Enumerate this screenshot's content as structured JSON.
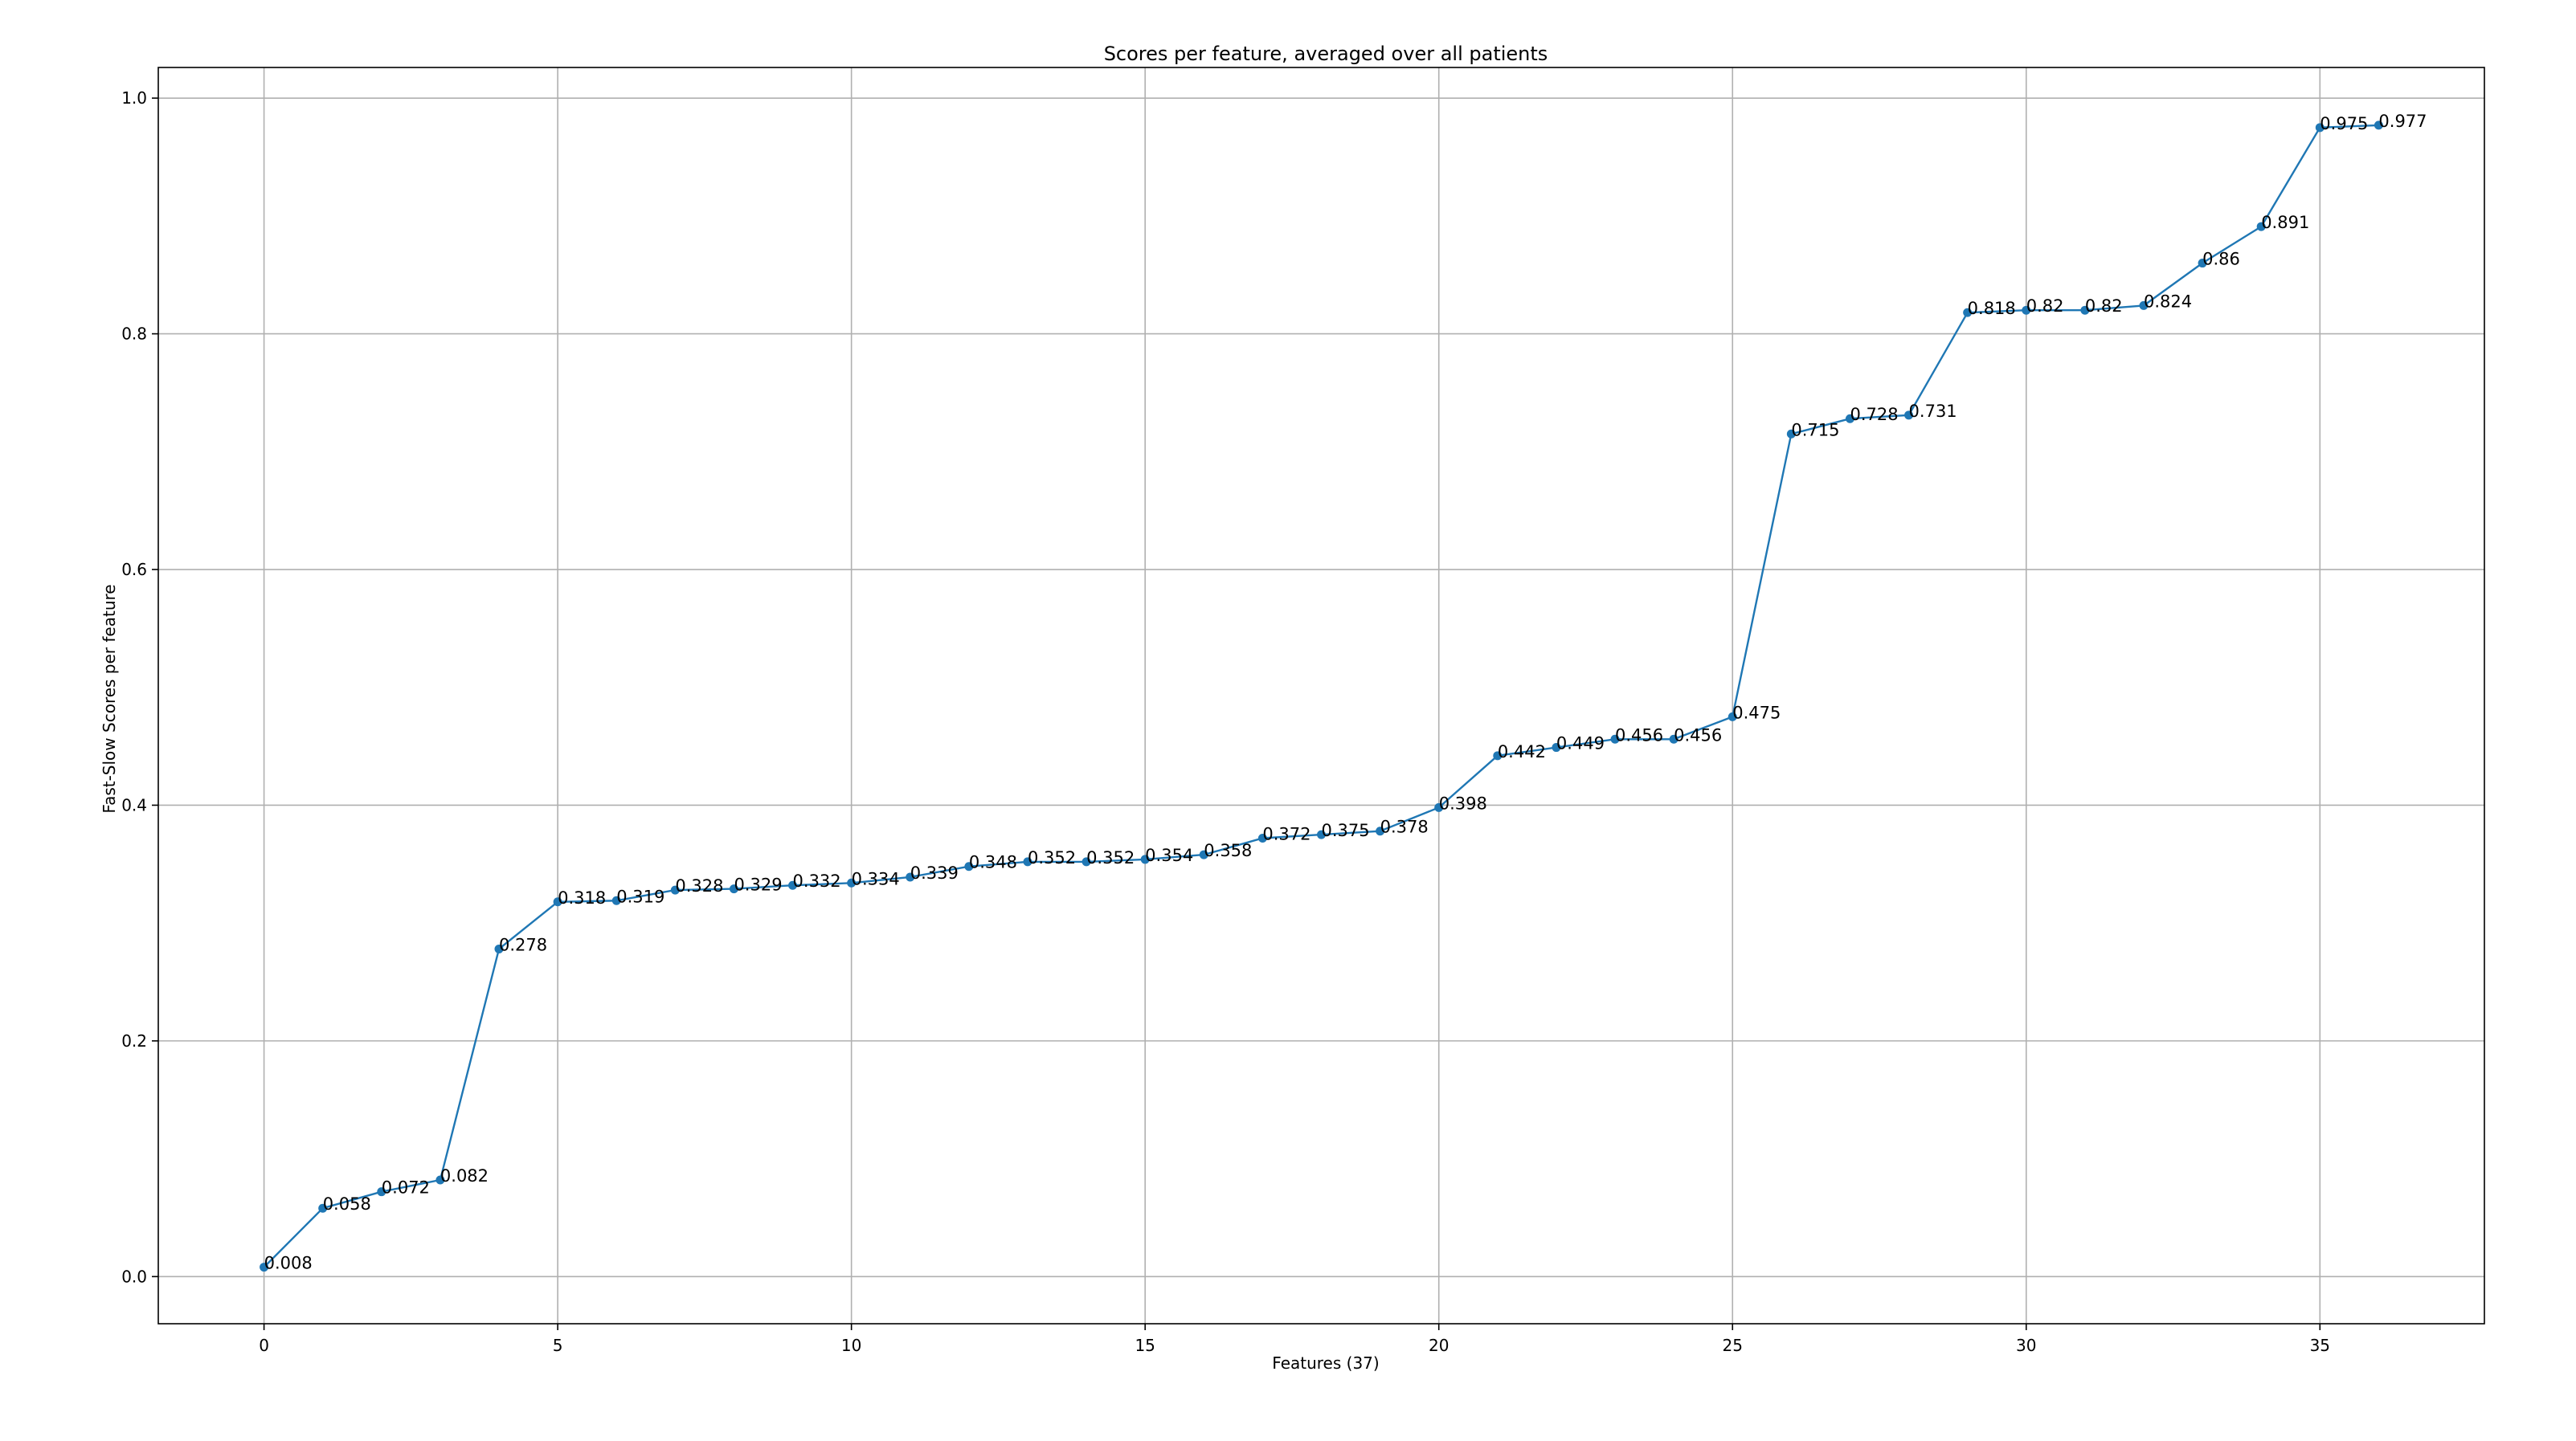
{
  "chart_data": {
    "type": "line",
    "title": "Scores per feature, averaged over all patients",
    "xlabel": "Features (37)",
    "ylabel": "Fast-Slow Scores per feature",
    "x": [
      0,
      1,
      2,
      3,
      4,
      5,
      6,
      7,
      8,
      9,
      10,
      11,
      12,
      13,
      14,
      15,
      16,
      17,
      18,
      19,
      20,
      21,
      22,
      23,
      24,
      25,
      26,
      27,
      28,
      29,
      30,
      31,
      32,
      33,
      34,
      35,
      36
    ],
    "values": [
      0.008,
      0.058,
      0.072,
      0.082,
      0.278,
      0.318,
      0.319,
      0.328,
      0.329,
      0.332,
      0.334,
      0.339,
      0.348,
      0.352,
      0.352,
      0.354,
      0.358,
      0.372,
      0.375,
      0.378,
      0.398,
      0.442,
      0.449,
      0.456,
      0.456,
      0.475,
      0.715,
      0.728,
      0.731,
      0.818,
      0.82,
      0.82,
      0.824,
      0.86,
      0.891,
      0.975,
      0.977
    ],
    "data_labels": [
      "0.008",
      "0.058",
      "0.072",
      "0.082",
      "0.278",
      "0.318",
      "0.319",
      "0.328",
      "0.329",
      "0.332",
      "0.334",
      "0.339",
      "0.348",
      "0.352",
      "0.352",
      "0.354",
      "0.358",
      "0.372",
      "0.375",
      "0.378",
      "0.398",
      "0.442",
      "0.449",
      "0.456",
      "0.456",
      "0.475",
      "0.715",
      "0.728",
      "0.731",
      "0.818",
      "0.82",
      "0.82",
      "0.824",
      "0.86",
      "0.891",
      "0.975",
      "0.977"
    ],
    "xticks": [
      0,
      5,
      10,
      15,
      20,
      25,
      30,
      35
    ],
    "xtick_labels": [
      "0",
      "5",
      "10",
      "15",
      "20",
      "25",
      "30",
      "35"
    ],
    "yticks": [
      0.0,
      0.2,
      0.4,
      0.6,
      0.8,
      1.0
    ],
    "ytick_labels": [
      "0.0",
      "0.2",
      "0.4",
      "0.6",
      "0.8",
      "1.0"
    ],
    "xlim": [
      -1.8,
      37.8
    ],
    "ylim": [
      -0.04,
      1.026
    ],
    "grid": true,
    "color": "#1f77b4"
  }
}
